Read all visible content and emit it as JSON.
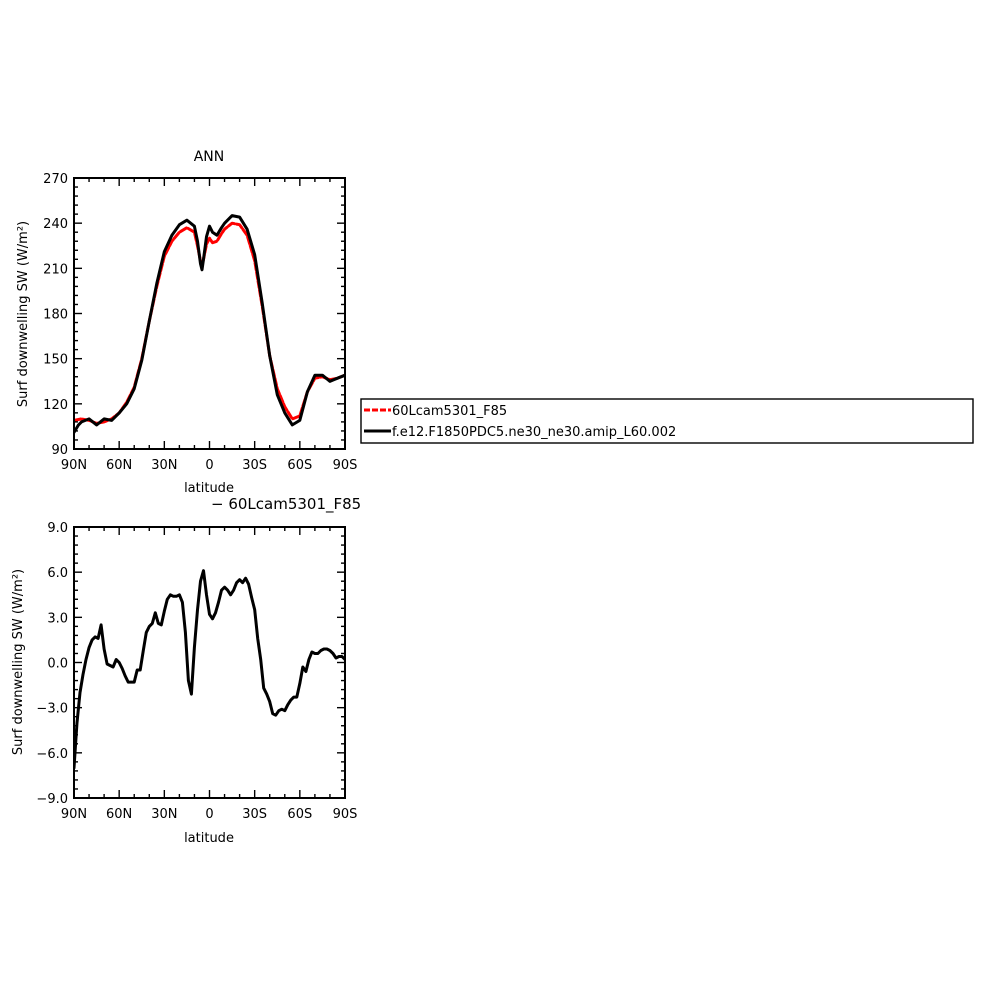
{
  "chart_data": [
    {
      "type": "line",
      "title": "ANN",
      "xlabel": "latitude",
      "ylabel": "Surf downwelling SW (W/m²)",
      "xlim": [
        90,
        -90
      ],
      "ylim": [
        90,
        270
      ],
      "x_tick_values": [
        90,
        60,
        30,
        0,
        -30,
        -60,
        -90
      ],
      "x_tick_labels": [
        "90N",
        "60N",
        "30N",
        "0",
        "30S",
        "60S",
        "90S"
      ],
      "y_tick_values": [
        90,
        120,
        150,
        180,
        210,
        240,
        270
      ],
      "y_tick_labels": [
        "90",
        "120",
        "150",
        "180",
        "210",
        "240",
        "270"
      ],
      "legend_position": "right",
      "series": [
        {
          "name": "60Lcam5301_F85",
          "color": "#ff0000",
          "dashed": true,
          "x": [
            90,
            85,
            80,
            75,
            70,
            65,
            60,
            55,
            50,
            45,
            40,
            35,
            30,
            25,
            20,
            15,
            10,
            8,
            6,
            5,
            4,
            2,
            0,
            -2,
            -5,
            -8,
            -10,
            -15,
            -20,
            -25,
            -30,
            -35,
            -40,
            -45,
            -50,
            -55,
            -60,
            -65,
            -70,
            -75,
            -80,
            -85,
            -90
          ],
          "y": [
            109,
            110,
            109,
            107,
            108,
            110,
            114,
            121,
            131,
            150,
            175,
            198,
            218,
            228,
            234,
            237,
            234,
            225,
            215,
            212,
            216,
            226,
            230,
            227,
            228,
            233,
            236,
            240,
            239,
            232,
            215,
            185,
            152,
            130,
            118,
            110,
            112,
            128,
            137,
            138,
            136,
            137,
            139
          ]
        },
        {
          "name": "f.e12.F1850PDC5.ne30_ne30.amip_L60.002",
          "color": "#000000",
          "dashed": false,
          "x": [
            90,
            87,
            85,
            80,
            75,
            70,
            65,
            60,
            55,
            50,
            45,
            40,
            35,
            30,
            25,
            20,
            15,
            10,
            8,
            6,
            5,
            4,
            2,
            0,
            -2,
            -5,
            -8,
            -10,
            -15,
            -20,
            -25,
            -30,
            -35,
            -40,
            -45,
            -50,
            -55,
            -60,
            -65,
            -70,
            -75,
            -80,
            -85,
            -90
          ],
          "y": [
            101,
            106,
            108,
            110,
            106,
            110,
            109,
            114,
            120,
            130,
            149,
            175,
            200,
            221,
            232,
            239,
            242,
            238,
            228,
            213,
            209,
            216,
            231,
            238,
            234,
            232,
            237,
            240,
            245,
            244,
            236,
            219,
            187,
            152,
            126,
            114,
            106,
            109,
            128,
            139,
            139,
            135,
            137,
            139
          ]
        }
      ]
    },
    {
      "type": "line",
      "title": "− 60Lcam5301_F85",
      "xlabel": "latitude",
      "ylabel": "Surf downwelling SW (W/m²)",
      "xlim": [
        90,
        -90
      ],
      "ylim": [
        -9,
        9
      ],
      "x_tick_values": [
        90,
        60,
        30,
        0,
        -30,
        -60,
        -90
      ],
      "x_tick_labels": [
        "90N",
        "60N",
        "30N",
        "0",
        "30S",
        "60S",
        "90S"
      ],
      "y_tick_values": [
        9,
        6,
        3,
        0,
        -3,
        -6,
        -9
      ],
      "y_tick_labels": [
        "9.0",
        "6.0",
        "3.0",
        "0.0",
        "−3.0",
        "−6.0",
        "−9.0"
      ],
      "series": [
        {
          "color": "#000000",
          "x": [
            90,
            88,
            86,
            84,
            82,
            80,
            78,
            76,
            74,
            72,
            70,
            68,
            66,
            64,
            62,
            60,
            58,
            56,
            54,
            52,
            50,
            48,
            46,
            44,
            42,
            40,
            38,
            36,
            34,
            32,
            30,
            28,
            26,
            24,
            22,
            20,
            18,
            16,
            14,
            12,
            10,
            8,
            6,
            4,
            2,
            0,
            -2,
            -4,
            -6,
            -8,
            -10,
            -12,
            -14,
            -16,
            -18,
            -20,
            -22,
            -24,
            -26,
            -28,
            -30,
            -32,
            -34,
            -36,
            -38,
            -40,
            -42,
            -44,
            -46,
            -48,
            -50,
            -52,
            -54,
            -56,
            -58,
            -60,
            -62,
            -64,
            -66,
            -68,
            -70,
            -72,
            -74,
            -76,
            -78,
            -80,
            -82,
            -84,
            -86,
            -88,
            -90
          ],
          "y": [
            -7.0,
            -4.0,
            -2.0,
            -0.8,
            0.2,
            1.0,
            1.5,
            1.7,
            1.6,
            2.5,
            0.9,
            -0.1,
            -0.2,
            -0.3,
            0.2,
            0.0,
            -0.4,
            -0.9,
            -1.3,
            -1.3,
            -1.3,
            -0.5,
            -0.5,
            0.8,
            2.0,
            2.4,
            2.6,
            3.3,
            2.6,
            2.5,
            3.4,
            4.2,
            4.5,
            4.4,
            4.4,
            4.5,
            4.0,
            2.0,
            -1.2,
            -2.1,
            1.0,
            3.5,
            5.4,
            6.1,
            4.5,
            3.2,
            2.9,
            3.3,
            4.0,
            4.8,
            5.0,
            4.8,
            4.5,
            4.8,
            5.3,
            5.5,
            5.3,
            5.6,
            5.2,
            4.3,
            3.5,
            1.6,
            0.2,
            -1.7,
            -2.1,
            -2.6,
            -3.4,
            -3.5,
            -3.2,
            -3.1,
            -3.2,
            -2.8,
            -2.5,
            -2.3,
            -2.3,
            -1.4,
            -0.3,
            -0.6,
            0.2,
            0.7,
            0.6,
            0.6,
            0.8,
            0.9,
            0.9,
            0.8,
            0.6,
            0.3,
            0.4,
            0.4,
            0.2
          ]
        }
      ]
    }
  ]
}
